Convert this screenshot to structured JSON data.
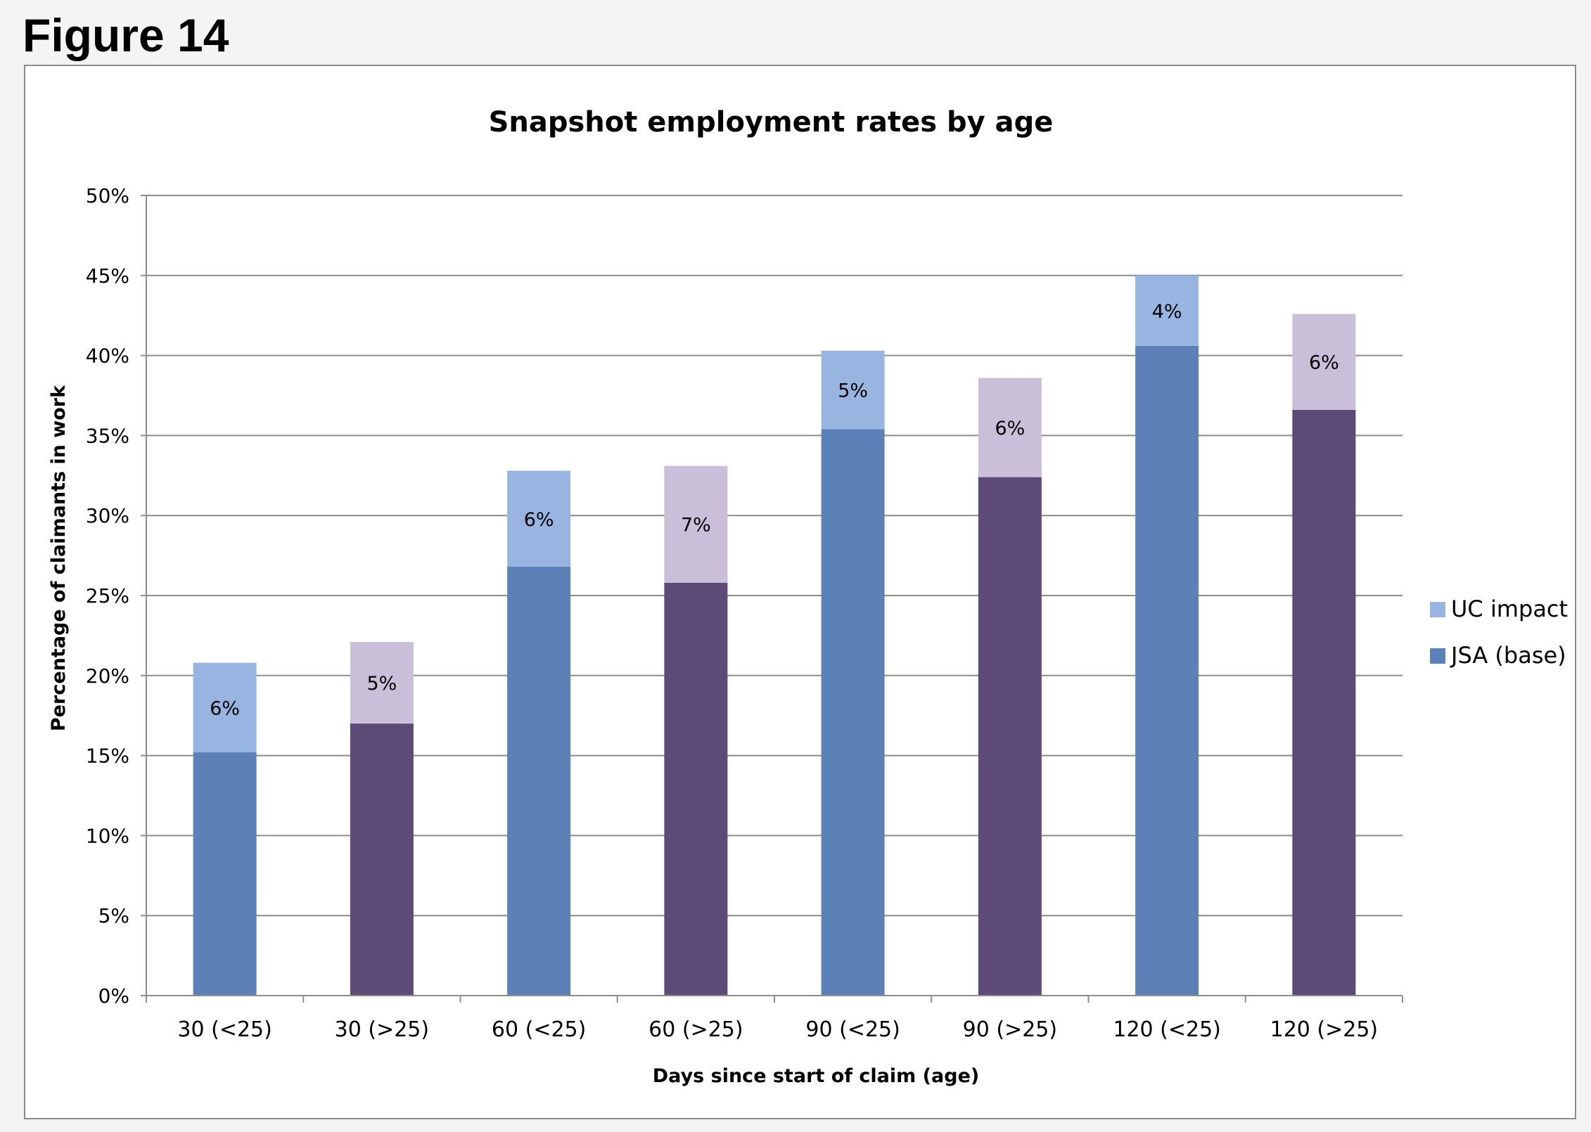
{
  "figure_label": "Figure 14",
  "chart_data": {
    "type": "bar",
    "stacked": true,
    "title": "Snapshot employment rates by age",
    "xlabel": "Days since start of claim (age)",
    "ylabel": "Percentage of claimants in work",
    "ylim": [
      0,
      50
    ],
    "yticks": [
      "0%",
      "5%",
      "10%",
      "15%",
      "20%",
      "25%",
      "30%",
      "35%",
      "40%",
      "45%",
      "50%"
    ],
    "grid": true,
    "legend_position": "right",
    "categories": [
      "30 (<25)",
      "30 (>25)",
      "60 (<25)",
      "60 (>25)",
      "90 (<25)",
      "90 (>25)",
      "120 (<25)",
      "120 (>25)"
    ],
    "series": [
      {
        "name": "JSA (base)",
        "values": [
          15.2,
          17.0,
          26.8,
          25.8,
          35.4,
          32.4,
          40.6,
          36.6
        ],
        "colors": [
          "#5b81b7",
          "#5e4a77",
          "#5b81b7",
          "#5e4a77",
          "#5b81b7",
          "#5e4a77",
          "#5b81b7",
          "#5e4a77"
        ]
      },
      {
        "name": "UC impact",
        "values": [
          5.6,
          5.1,
          6.0,
          7.3,
          4.9,
          6.2,
          4.4,
          6.0
        ],
        "data_labels": [
          "6%",
          "5%",
          "6%",
          "7%",
          "5%",
          "6%",
          "4%",
          "6%"
        ],
        "colors": [
          "#98b4e0",
          "#c9bfd9",
          "#98b4e0",
          "#c9bfd9",
          "#98b4e0",
          "#c9bfd9",
          "#98b4e0",
          "#c9bfd9"
        ]
      }
    ],
    "legend": [
      {
        "label": "UC impact",
        "color": "#98b4e0"
      },
      {
        "label": "JSA (base)",
        "color": "#5b81b7"
      }
    ]
  }
}
